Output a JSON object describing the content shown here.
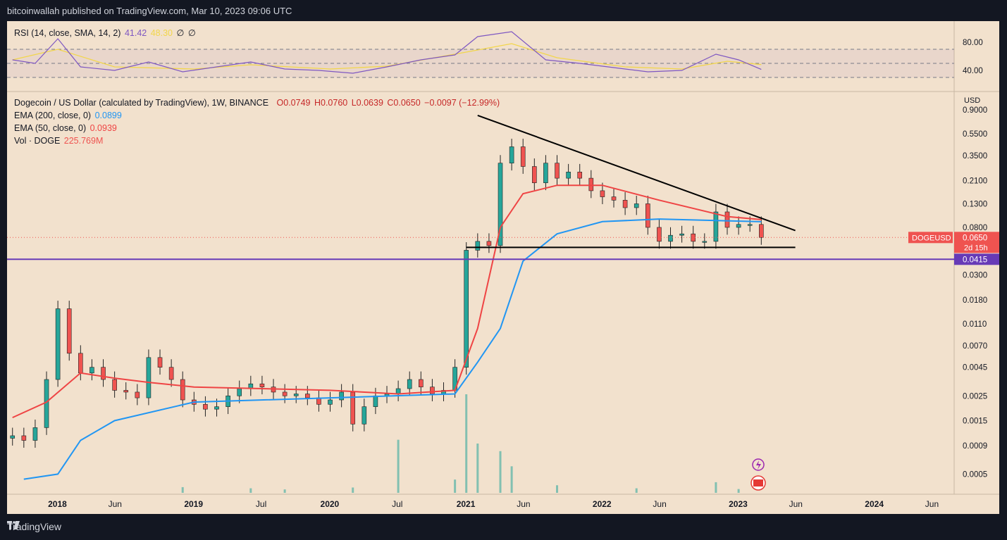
{
  "header": {
    "publisher": "bitcoinwallah published on TradingView.com, Mar 10, 2023 09:06 UTC"
  },
  "rsi_legend": {
    "label": "RSI (14, close, SMA, 14, 2)",
    "rsi": "41.42",
    "sma": "48.30",
    "g1": "∅",
    "g2": "∅"
  },
  "main_legend": {
    "symbol": "Dogecoin / US Dollar (calculated by TradingView), 1W, BINANCE",
    "open": "O0.0749",
    "high": "H0.0760",
    "low": "L0.0639",
    "close": "C0.0650",
    "change": "−0.0097 (−12.99%)",
    "ema200_label": "EMA (200, close, 0)",
    "ema200_value": "0.0899",
    "ema50_label": "EMA (50, close, 0)",
    "ema50_value": "0.0939",
    "vol_label": "Vol · DOGE",
    "vol_value": "225.769M"
  },
  "price_axis": {
    "currency": "USD",
    "ticks": [
      "0.9000",
      "0.5500",
      "0.3500",
      "0.2100",
      "0.1300",
      "0.0800",
      "0.0300",
      "0.0180",
      "0.0110",
      "0.0070",
      "0.0045",
      "0.0025",
      "0.0015",
      "0.0009",
      "0.0005"
    ]
  },
  "rsi_axis": {
    "ticks": [
      "80.00",
      "40.00"
    ]
  },
  "time_axis": {
    "ticks": [
      "2018",
      "Jun",
      "2019",
      "Jul",
      "2020",
      "Jul",
      "2021",
      "Jun",
      "2022",
      "Jun",
      "2023",
      "Jun",
      "2024",
      "Jun"
    ]
  },
  "labels": {
    "symbol_tag": "DOGEUSD",
    "price_tag": "0.0650",
    "countdown": "2d 15h",
    "support_tag": "0.0415"
  },
  "brand": {
    "name": "TradingView"
  },
  "colors": {
    "background": "#f2e1cd",
    "up": "#26a69a",
    "down": "#ef5350",
    "ema50": "#ef4444",
    "ema200": "#2196f3",
    "rsi": "#7e57c2",
    "rsi_sma": "#f2d64b",
    "support": "#673ab7",
    "trendline": "#000000"
  },
  "chart_data": {
    "type": "candlestick",
    "scale": "log",
    "title": "Dogecoin / US Dollar (calculated by TradingView), 1W, BINANCE",
    "ylabel": "USD",
    "ylim": [
      0.00035,
      1.1
    ],
    "x_range": [
      "2017-09",
      "2024-08"
    ],
    "close_series": [
      [
        "2017-09",
        0.0011
      ],
      [
        "2017-10",
        0.001
      ],
      [
        "2017-11",
        0.0013
      ],
      [
        "2017-12",
        0.0035
      ],
      [
        "2018-01",
        0.015
      ],
      [
        "2018-02",
        0.006
      ],
      [
        "2018-03",
        0.004
      ],
      [
        "2018-04",
        0.0045
      ],
      [
        "2018-05",
        0.0035
      ],
      [
        "2018-06",
        0.0028
      ],
      [
        "2018-07",
        0.0027
      ],
      [
        "2018-08",
        0.0024
      ],
      [
        "2018-09",
        0.0055
      ],
      [
        "2018-10",
        0.0045
      ],
      [
        "2018-11",
        0.0035
      ],
      [
        "2018-12",
        0.0023
      ],
      [
        "2019-01",
        0.0021
      ],
      [
        "2019-02",
        0.0019
      ],
      [
        "2019-03",
        0.002
      ],
      [
        "2019-04",
        0.0025
      ],
      [
        "2019-05",
        0.0029
      ],
      [
        "2019-06",
        0.0032
      ],
      [
        "2019-07",
        0.003
      ],
      [
        "2019-08",
        0.0027
      ],
      [
        "2019-09",
        0.0025
      ],
      [
        "2019-10",
        0.0026
      ],
      [
        "2019-11",
        0.0024
      ],
      [
        "2019-12",
        0.0021
      ],
      [
        "2020-01",
        0.0023
      ],
      [
        "2020-02",
        0.0027
      ],
      [
        "2020-03",
        0.0014
      ],
      [
        "2020-04",
        0.002
      ],
      [
        "2020-05",
        0.0025
      ],
      [
        "2020-06",
        0.0026
      ],
      [
        "2020-07",
        0.0029
      ],
      [
        "2020-08",
        0.0035
      ],
      [
        "2020-09",
        0.003
      ],
      [
        "2020-10",
        0.0026
      ],
      [
        "2020-11",
        0.0028
      ],
      [
        "2020-12",
        0.0045
      ],
      [
        "2021-01",
        0.05
      ],
      [
        "2021-02",
        0.06
      ],
      [
        "2021-03",
        0.055
      ],
      [
        "2021-04",
        0.3
      ],
      [
        "2021-05",
        0.42
      ],
      [
        "2021-06",
        0.28
      ],
      [
        "2021-07",
        0.2
      ],
      [
        "2021-08",
        0.3
      ],
      [
        "2021-09",
        0.22
      ],
      [
        "2021-10",
        0.25
      ],
      [
        "2021-11",
        0.22
      ],
      [
        "2021-12",
        0.17
      ],
      [
        "2022-01",
        0.15
      ],
      [
        "2022-02",
        0.14
      ],
      [
        "2022-03",
        0.12
      ],
      [
        "2022-04",
        0.13
      ],
      [
        "2022-05",
        0.08
      ],
      [
        "2022-06",
        0.06
      ],
      [
        "2022-07",
        0.068
      ],
      [
        "2022-08",
        0.07
      ],
      [
        "2022-09",
        0.06
      ],
      [
        "2022-10",
        0.06
      ],
      [
        "2022-11",
        0.11
      ],
      [
        "2022-12",
        0.08
      ],
      [
        "2023-01",
        0.085
      ],
      [
        "2023-02",
        0.085
      ],
      [
        "2023-03",
        0.065
      ]
    ],
    "ema50": [
      [
        "2017-09",
        0.0016
      ],
      [
        "2017-12",
        0.0022
      ],
      [
        "2018-03",
        0.004
      ],
      [
        "2018-06",
        0.0036
      ],
      [
        "2018-09",
        0.0033
      ],
      [
        "2019-01",
        0.003
      ],
      [
        "2019-07",
        0.0029
      ],
      [
        "2020-01",
        0.0028
      ],
      [
        "2020-07",
        0.0026
      ],
      [
        "2020-12",
        0.0028
      ],
      [
        "2021-02",
        0.01
      ],
      [
        "2021-04",
        0.08
      ],
      [
        "2021-06",
        0.16
      ],
      [
        "2021-09",
        0.19
      ],
      [
        "2022-01",
        0.19
      ],
      [
        "2022-06",
        0.14
      ],
      [
        "2022-12",
        0.1
      ],
      [
        "2023-03",
        0.0939
      ]
    ],
    "ema200": [
      [
        "2017-10",
        0.00045
      ],
      [
        "2018-01",
        0.0005
      ],
      [
        "2018-03",
        0.001
      ],
      [
        "2018-06",
        0.0015
      ],
      [
        "2019-01",
        0.0022
      ],
      [
        "2020-01",
        0.0024
      ],
      [
        "2020-12",
        0.0026
      ],
      [
        "2021-02",
        0.005
      ],
      [
        "2021-04",
        0.01
      ],
      [
        "2021-06",
        0.04
      ],
      [
        "2021-09",
        0.07
      ],
      [
        "2022-01",
        0.09
      ],
      [
        "2022-06",
        0.095
      ],
      [
        "2023-03",
        0.0899
      ]
    ],
    "rsi_ylim": [
      10,
      110
    ],
    "rsi_bands": [
      30,
      50,
      70
    ],
    "rsi": [
      [
        "2017-09",
        55
      ],
      [
        "2017-11",
        50
      ],
      [
        "2018-01",
        85
      ],
      [
        "2018-03",
        45
      ],
      [
        "2018-06",
        40
      ],
      [
        "2018-09",
        52
      ],
      [
        "2018-12",
        38
      ],
      [
        "2019-03",
        45
      ],
      [
        "2019-06",
        52
      ],
      [
        "2019-09",
        42
      ],
      [
        "2019-12",
        40
      ],
      [
        "2020-03",
        36
      ],
      [
        "2020-06",
        45
      ],
      [
        "2020-09",
        55
      ],
      [
        "2020-12",
        62
      ],
      [
        "2021-02",
        88
      ],
      [
        "2021-05",
        95
      ],
      [
        "2021-08",
        55
      ],
      [
        "2021-11",
        50
      ],
      [
        "2022-02",
        44
      ],
      [
        "2022-05",
        38
      ],
      [
        "2022-08",
        40
      ],
      [
        "2022-11",
        63
      ],
      [
        "2023-01",
        55
      ],
      [
        "2023-03",
        41.42
      ]
    ],
    "rsi_sma": [
      [
        "2017-09",
        55
      ],
      [
        "2018-01",
        70
      ],
      [
        "2018-06",
        45
      ],
      [
        "2019-01",
        42
      ],
      [
        "2019-06",
        48
      ],
      [
        "2020-01",
        42
      ],
      [
        "2020-06",
        46
      ],
      [
        "2021-01",
        66
      ],
      [
        "2021-05",
        78
      ],
      [
        "2021-09",
        58
      ],
      [
        "2022-03",
        45
      ],
      [
        "2022-08",
        42
      ],
      [
        "2022-12",
        53
      ],
      [
        "2023-03",
        48.3
      ]
    ],
    "volume": [
      [
        "2018-12",
        15
      ],
      [
        "2019-06",
        12
      ],
      [
        "2019-09",
        9
      ],
      [
        "2020-03",
        14
      ],
      [
        "2020-07",
        140
      ],
      [
        "2020-12",
        35
      ],
      [
        "2021-01",
        260
      ],
      [
        "2021-02",
        130
      ],
      [
        "2021-04",
        110
      ],
      [
        "2021-05",
        70
      ],
      [
        "2021-09",
        20
      ],
      [
        "2022-04",
        12
      ],
      [
        "2022-11",
        28
      ],
      [
        "2023-01",
        10
      ]
    ],
    "support_level": 0.0415,
    "last_price": 0.065,
    "trendlines": [
      {
        "name": "descending resistance",
        "points": [
          [
            "2021-02",
            0.8
          ],
          [
            "2023-06",
            0.075
          ]
        ]
      },
      {
        "name": "horizontal support",
        "points": [
          [
            "2021-01",
            0.053
          ],
          [
            "2023-06",
            0.053
          ]
        ]
      }
    ]
  }
}
